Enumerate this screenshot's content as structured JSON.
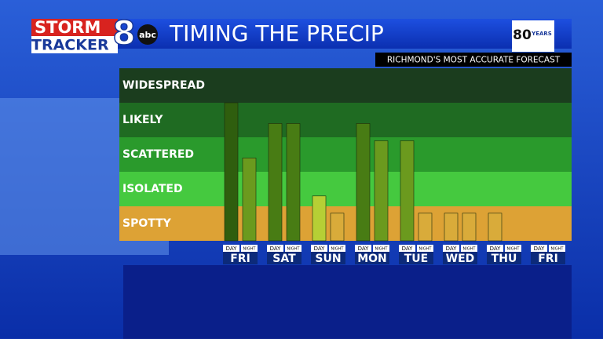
{
  "branding": {
    "storm": "STORM",
    "tracker": "TRACKER",
    "channel": "8",
    "network": "abc",
    "years": "80",
    "years_label": "YEARS"
  },
  "chart_data": {
    "type": "bar",
    "title": "TIMING THE PRECIP",
    "subtitle": "RICHMOND'S MOST ACCURATE FORECAST",
    "categories": [
      "FRI",
      "SAT",
      "SUN",
      "MON",
      "TUE",
      "WED",
      "THU",
      "FRI"
    ],
    "series": [
      {
        "name": "DAY",
        "values": [
          4.0,
          3.4,
          1.3,
          3.4,
          2.9,
          0.8,
          0.8,
          null
        ]
      },
      {
        "name": "NIGHT",
        "values": [
          2.4,
          3.4,
          0.8,
          2.9,
          0.8,
          0.8,
          null,
          null
        ]
      }
    ],
    "ylim": [
      0,
      5
    ],
    "yticks": [
      {
        "value": 0.5,
        "label": "SPOTTY"
      },
      {
        "value": 1.5,
        "label": "ISOLATED"
      },
      {
        "value": 2.5,
        "label": "SCATTERED"
      },
      {
        "value": 3.5,
        "label": "LIKELY"
      },
      {
        "value": 4.5,
        "label": "WIDESPREAD"
      }
    ],
    "band_colors": [
      "#dda235",
      "#45c93f",
      "#2a9a2c",
      "#1f6b22",
      "#1b3d1e"
    ],
    "bar_colors": [
      "#d9ab3a",
      "#b6cf35",
      "#6b9a1e",
      "#487c14",
      "#2f5e0e"
    ]
  }
}
